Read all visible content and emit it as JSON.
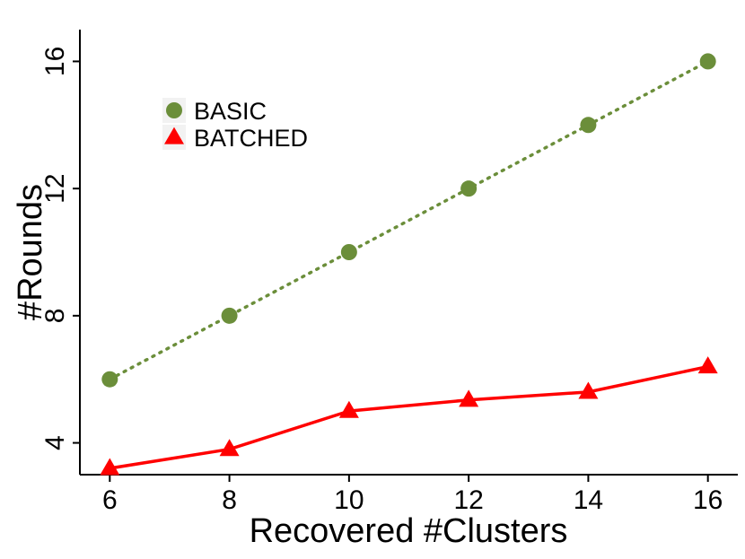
{
  "chart_data": {
    "type": "line",
    "title": "",
    "xlabel": "Recovered #Clusters",
    "ylabel": "#Rounds",
    "x": [
      6,
      8,
      10,
      12,
      14,
      16
    ],
    "x_ticks": [
      "6",
      "8",
      "10",
      "12",
      "14",
      "16"
    ],
    "y_ticks": [
      "4",
      "8",
      "12",
      "16"
    ],
    "xlim": [
      5.5,
      16.5
    ],
    "ylim": [
      3.0,
      17.0
    ],
    "grid": false,
    "legend_position": "top-left",
    "series": [
      {
        "name": "BASIC",
        "values": [
          6,
          8,
          10,
          12,
          14,
          16
        ],
        "color": "#6b8e3a",
        "marker": "circle",
        "line_style": "dotted"
      },
      {
        "name": "BATCHED",
        "values": [
          3.2,
          3.8,
          5.0,
          5.35,
          5.6,
          6.4
        ],
        "color": "#ff0000",
        "marker": "triangle",
        "line_style": "solid"
      }
    ]
  }
}
